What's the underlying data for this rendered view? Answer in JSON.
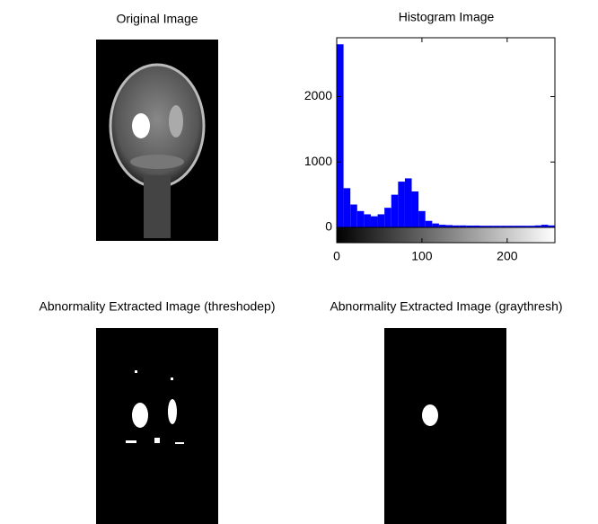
{
  "chart_data": [
    {
      "type": "image",
      "title": "Original Image"
    },
    {
      "type": "histogram",
      "title": "Histogram Image",
      "color": "#0000ff",
      "bins": [
        0,
        8,
        16,
        24,
        32,
        40,
        48,
        56,
        64,
        72,
        80,
        88,
        96,
        104,
        112,
        120,
        128,
        136,
        144,
        152,
        160,
        168,
        176,
        184,
        192,
        200,
        208,
        216,
        224,
        232,
        240,
        248,
        256
      ],
      "counts": [
        2800,
        600,
        350,
        250,
        200,
        170,
        200,
        300,
        500,
        700,
        750,
        550,
        250,
        100,
        60,
        40,
        35,
        30,
        30,
        28,
        28,
        25,
        25,
        25,
        25,
        25,
        25,
        25,
        25,
        30,
        40,
        30
      ],
      "xlim": [
        0,
        256
      ],
      "ylim": [
        0,
        2900
      ],
      "xticks": [
        0,
        100,
        200
      ],
      "yticks": [
        0,
        1000,
        2000
      ]
    },
    {
      "type": "image",
      "title": "Abnormality Extracted Image (threshodep)"
    },
    {
      "type": "image",
      "title": "Abnormality Extracted Image (graythresh)"
    }
  ]
}
